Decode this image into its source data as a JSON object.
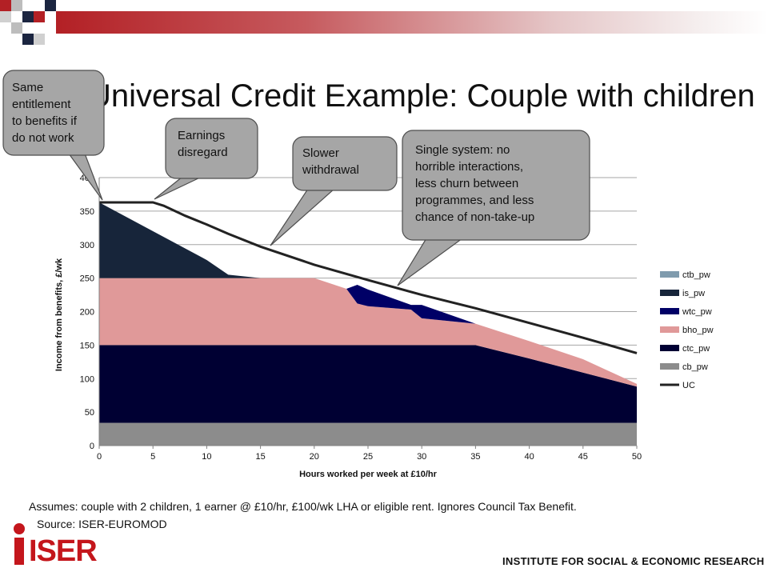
{
  "slide": {
    "title": "Universal Credit Example: Couple with children",
    "footnote": "Assumes: couple with 2 children, 1 earner @ £10/hr, £100/wk LHA  or eligible rent. Ignores Council Tax Benefit.",
    "source": "Source: ISER-EUROMOD",
    "logo_text": "ISER",
    "institute": "INSTITUTE FOR SOCIAL & ECONOMIC RESEARCH",
    "brand_color": "#c4161c"
  },
  "callouts": [
    {
      "lines": [
        "Same",
        "entitlement",
        "to benefits if",
        "do not work"
      ]
    },
    {
      "lines": [
        "Earnings",
        "disregard"
      ]
    },
    {
      "lines": [
        "Slower",
        "withdrawal"
      ]
    },
    {
      "lines": [
        "Single system: no",
        "horrible interactions,",
        "less churn between",
        "programmes, and less",
        "chance of non-take-up"
      ]
    }
  ],
  "chart_data": {
    "type": "area",
    "xlabel": "Hours worked per week at £10/hr",
    "ylabel": "Income from benefits, £/wk",
    "xlim": [
      0,
      50
    ],
    "ylim": [
      0,
      400
    ],
    "xticks": [
      0,
      5,
      10,
      15,
      20,
      25,
      30,
      35,
      40,
      45,
      50
    ],
    "yticks": [
      0,
      50,
      100,
      150,
      200,
      250,
      300,
      350,
      400
    ],
    "grid": true,
    "legend_position": "right",
    "x": [
      0,
      5,
      10,
      12,
      15,
      20,
      23,
      24,
      25,
      29,
      30,
      35,
      40,
      45,
      50
    ],
    "series": [
      {
        "name": "cb_pw",
        "kind": "area",
        "color": "#8c8c8c",
        "values": [
          34,
          34,
          34,
          34,
          34,
          34,
          34,
          34,
          34,
          34,
          34,
          34,
          34,
          34,
          34
        ]
      },
      {
        "name": "ctc_pw",
        "kind": "area",
        "color": "#000033",
        "values": [
          116,
          116,
          116,
          116,
          116,
          116,
          116,
          116,
          116,
          116,
          116,
          116,
          96,
          75,
          54
        ]
      },
      {
        "name": "bho_pw",
        "kind": "area",
        "color": "#e09999",
        "values": [
          100,
          100,
          100,
          100,
          100,
          100,
          84,
          62,
          58,
          53,
          40,
          32,
          26,
          20,
          4
        ]
      },
      {
        "name": "wtc_pw",
        "kind": "area",
        "color": "#000066",
        "values": [
          0,
          0,
          0,
          0,
          0,
          0,
          0,
          28,
          25,
          7,
          20,
          0,
          0,
          0,
          0
        ]
      },
      {
        "name": "is_pw",
        "kind": "area",
        "color": "#17253a",
        "values": [
          113,
          70,
          27,
          5,
          0,
          0,
          0,
          0,
          0,
          0,
          0,
          0,
          0,
          0,
          0
        ]
      },
      {
        "name": "ctb_pw",
        "kind": "area",
        "color": "#7f9bad",
        "values": [
          0,
          0,
          0,
          0,
          0,
          0,
          0,
          0,
          0,
          0,
          0,
          0,
          0,
          0,
          0
        ]
      },
      {
        "name": "UC",
        "kind": "line",
        "color": "#222222",
        "x": [
          0,
          5,
          6,
          8,
          10,
          12,
          15,
          20,
          25,
          30,
          35,
          40,
          45,
          50
        ],
        "values": [
          363,
          363,
          358,
          343,
          330,
          316,
          297,
          270,
          247,
          225,
          205,
          183,
          161,
          138
        ]
      }
    ],
    "legend": [
      "ctb_pw",
      "is_pw",
      "wtc_pw",
      "bho_pw",
      "ctc_pw",
      "cb_pw",
      "UC"
    ]
  }
}
